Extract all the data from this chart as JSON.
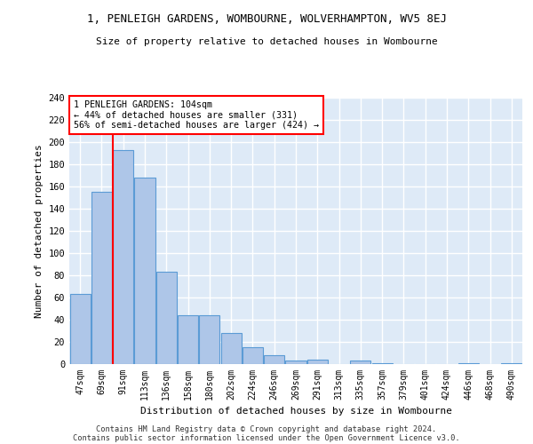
{
  "title": "1, PENLEIGH GARDENS, WOMBOURNE, WOLVERHAMPTON, WV5 8EJ",
  "subtitle": "Size of property relative to detached houses in Wombourne",
  "xlabel": "Distribution of detached houses by size in Wombourne",
  "ylabel": "Number of detached properties",
  "categories": [
    "47sqm",
    "69sqm",
    "91sqm",
    "113sqm",
    "136sqm",
    "158sqm",
    "180sqm",
    "202sqm",
    "224sqm",
    "246sqm",
    "269sqm",
    "291sqm",
    "313sqm",
    "335sqm",
    "357sqm",
    "379sqm",
    "401sqm",
    "424sqm",
    "446sqm",
    "468sqm",
    "490sqm"
  ],
  "values": [
    63,
    155,
    193,
    168,
    83,
    44,
    44,
    28,
    15,
    8,
    3,
    4,
    0,
    3,
    1,
    0,
    0,
    0,
    1,
    0,
    1
  ],
  "bar_color": "#aec6e8",
  "bar_edge_color": "#5b9bd5",
  "vline_x_index": 2,
  "marker_label": "1 PENLEIGH GARDENS: 104sqm",
  "annotation_line1": "← 44% of detached houses are smaller (331)",
  "annotation_line2": "56% of semi-detached houses are larger (424) →",
  "annotation_box_color": "white",
  "annotation_box_edge": "red",
  "vline_color": "red",
  "background_color": "#deeaf7",
  "grid_color": "white",
  "ylim": [
    0,
    240
  ],
  "yticks": [
    0,
    20,
    40,
    60,
    80,
    100,
    120,
    140,
    160,
    180,
    200,
    220,
    240
  ],
  "footer1": "Contains HM Land Registry data © Crown copyright and database right 2024.",
  "footer2": "Contains public sector information licensed under the Open Government Licence v3.0."
}
